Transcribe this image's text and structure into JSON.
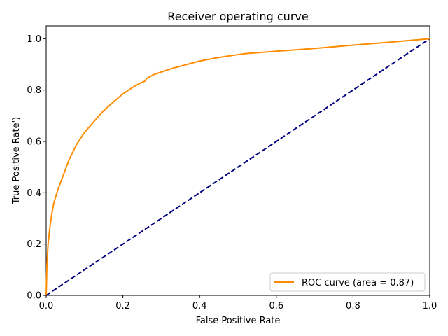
{
  "chart_data": {
    "type": "line",
    "title": "Receiver operating curve",
    "xlabel": "False Positive Rate",
    "ylabel": "True Positive Rate')",
    "xlim": [
      0.0,
      1.0
    ],
    "ylim": [
      0.0,
      1.05
    ],
    "xticks": [
      "0.0",
      "0.2",
      "0.4",
      "0.6",
      "0.8",
      "1.0"
    ],
    "yticks": [
      "0.0",
      "0.2",
      "0.4",
      "0.6",
      "0.8",
      "1.0"
    ],
    "grid": false,
    "legend_position": "lower-right",
    "series": [
      {
        "name": "ROC curve (area = 0.87)",
        "color": "#ff8c00",
        "style": "solid",
        "x": [
          0.0,
          0.002,
          0.005,
          0.01,
          0.015,
          0.02,
          0.03,
          0.04,
          0.05,
          0.06,
          0.07,
          0.08,
          0.1,
          0.12,
          0.15,
          0.18,
          0.2,
          0.23,
          0.25,
          0.258,
          0.262,
          0.28,
          0.3,
          0.33,
          0.36,
          0.4,
          0.45,
          0.5,
          0.52,
          0.6,
          0.7,
          0.8,
          0.9,
          1.0
        ],
        "y": [
          0.0,
          0.12,
          0.2,
          0.27,
          0.32,
          0.36,
          0.41,
          0.45,
          0.49,
          0.53,
          0.56,
          0.59,
          0.635,
          0.67,
          0.72,
          0.76,
          0.785,
          0.815,
          0.83,
          0.835,
          0.845,
          0.86,
          0.87,
          0.885,
          0.897,
          0.913,
          0.927,
          0.938,
          0.942,
          0.951,
          0.962,
          0.975,
          0.987,
          1.0
        ]
      },
      {
        "name": "",
        "color": "#000080",
        "style": "dashed",
        "x": [
          0.0,
          1.0
        ],
        "y": [
          0.0,
          1.0
        ]
      }
    ]
  }
}
